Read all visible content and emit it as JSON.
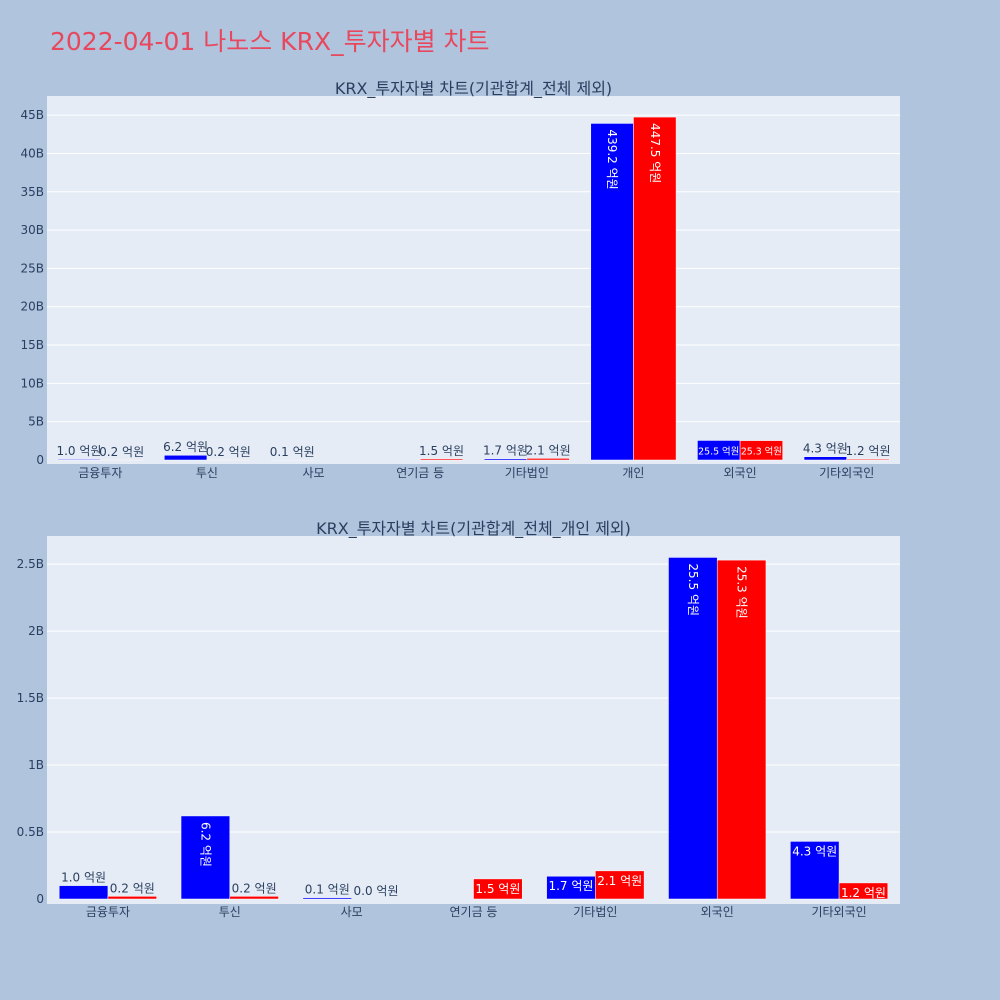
{
  "page": {
    "title": "2022-04-01 나노스 KRX_투자자별 차트"
  },
  "colors": {
    "background": "#b0c4de",
    "plot_background": "#e5ecf6",
    "title": "#e8485e",
    "buy": "#0000ff",
    "sell": "#ff0000"
  },
  "chart_data": [
    {
      "type": "bar",
      "title": "KRX_투자자별 차트(기관합계_전체 제외)",
      "categories": [
        "금융투자",
        "투신",
        "사모",
        "연기금 등",
        "기타법인",
        "개인",
        "외국인",
        "기타외국인"
      ],
      "series": [
        {
          "color": "#0000ff",
          "values": [
            100000000,
            620000000,
            10000000,
            0,
            170000000,
            43920000000,
            2550000000,
            430000000
          ],
          "labels": [
            "1.0 억원",
            "6.2 억원",
            "0.1 억원",
            "",
            "1.7 억원",
            "439.2 억원",
            "25.5 억원",
            "4.3 억원"
          ]
        },
        {
          "color": "#ff0000",
          "values": [
            20000000,
            20000000,
            0,
            150000000,
            210000000,
            44750000000,
            2530000000,
            120000000
          ],
          "labels": [
            "0.2 억원",
            "0.2 억원",
            "",
            "1.5 억원",
            "2.1 억원",
            "447.5 억원",
            "25.3 억원",
            "1.2 억원"
          ]
        }
      ],
      "ylim": [
        0,
        47500000000
      ],
      "yticks": [
        {
          "v": 0,
          "t": "0"
        },
        {
          "v": 5000000000,
          "t": "5B"
        },
        {
          "v": 10000000000,
          "t": "10B"
        },
        {
          "v": 15000000000,
          "t": "15B"
        },
        {
          "v": 20000000000,
          "t": "20B"
        },
        {
          "v": 25000000000,
          "t": "25B"
        },
        {
          "v": 30000000000,
          "t": "30B"
        },
        {
          "v": 35000000000,
          "t": "35B"
        },
        {
          "v": 40000000000,
          "t": "40B"
        },
        {
          "v": 45000000000,
          "t": "45B"
        }
      ],
      "grid": true,
      "legend": "none"
    },
    {
      "type": "bar",
      "title": "KRX_투자자별 차트(기관합계_전체_개인 제외)",
      "categories": [
        "금융투자",
        "투신",
        "사모",
        "연기금 등",
        "기타법인",
        "외국인",
        "기타외국인"
      ],
      "series": [
        {
          "color": "#0000ff",
          "values": [
            100000000,
            620000000,
            10000000,
            0,
            170000000,
            2550000000,
            430000000
          ],
          "labels": [
            "1.0 억원",
            "6.2 억원",
            "0.1 억원",
            "",
            "1.7 억원",
            "25.5 억원",
            "4.3 억원"
          ]
        },
        {
          "color": "#ff0000",
          "values": [
            20000000,
            20000000,
            0,
            150000000,
            210000000,
            2530000000,
            120000000
          ],
          "labels": [
            "0.2 억원",
            "0.2 억원",
            "0.0 억원",
            "1.5 억원",
            "2.1 억원",
            "25.3 억원",
            "1.2 억원"
          ]
        }
      ],
      "ylim": [
        0,
        2710000000
      ],
      "yticks": [
        {
          "v": 0,
          "t": "0"
        },
        {
          "v": 500000000,
          "t": "0.5B"
        },
        {
          "v": 1000000000,
          "t": "1B"
        },
        {
          "v": 1500000000,
          "t": "1.5B"
        },
        {
          "v": 2000000000,
          "t": "2B"
        },
        {
          "v": 2500000000,
          "t": "2.5B"
        }
      ],
      "grid": true,
      "legend": "none"
    }
  ]
}
